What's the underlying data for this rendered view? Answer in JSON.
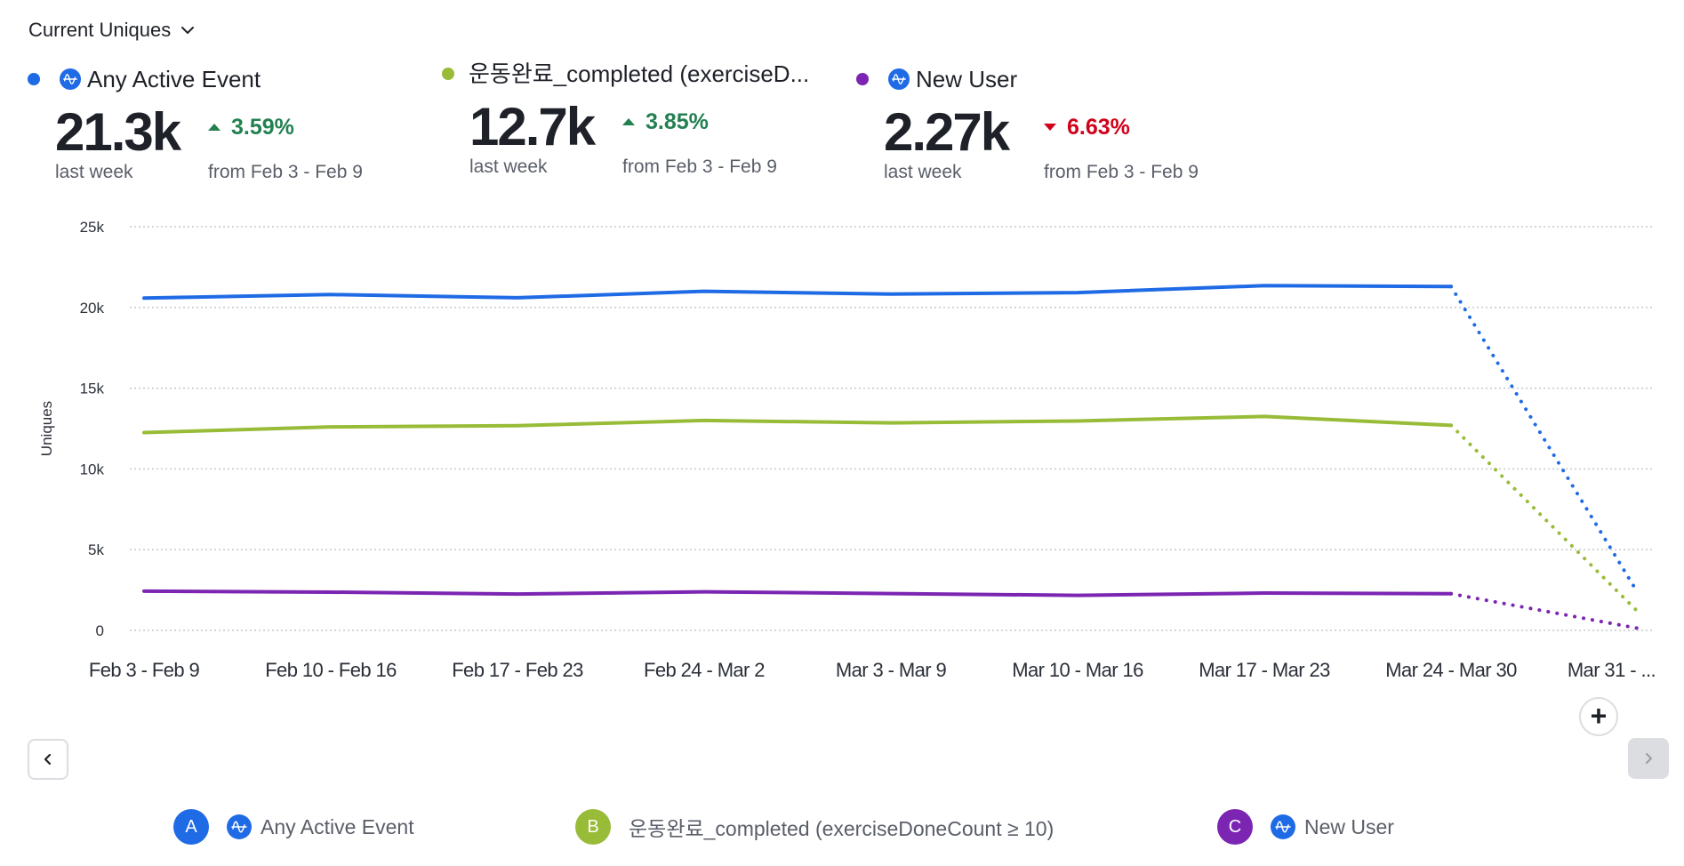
{
  "header": {
    "metric_selector": "Current Uniques",
    "chevron_icon": "chevron-down-icon"
  },
  "summaries": [
    {
      "label": "Any Active Event",
      "color": "#1f6ae5",
      "has_icon": true,
      "icon": "amplitude-icon",
      "value": "21.3k",
      "value_caption": "last week",
      "change": "3.59%",
      "direction": "up",
      "change_color": "#238051",
      "change_caption": "from Feb 3 - Feb 9"
    },
    {
      "label": "운동완료_completed (exerciseD...",
      "color": "#98bc38",
      "has_icon": false,
      "value": "12.7k",
      "value_caption": "last week",
      "change": "3.85%",
      "direction": "up",
      "change_color": "#238051",
      "change_caption": "from Feb 3 - Feb 9"
    },
    {
      "label": "New User",
      "color": "#7b25b2",
      "has_icon": true,
      "icon": "amplitude-icon",
      "value": "2.27k",
      "value_caption": "last week",
      "change": "6.63%",
      "direction": "down",
      "change_color": "#d0021b",
      "change_caption": "from Feb 3 - Feb 9"
    }
  ],
  "chart_data": {
    "type": "line",
    "title": "",
    "xlabel": "",
    "ylabel": "Uniques",
    "ylim": [
      0,
      25000
    ],
    "yticks": [
      0,
      5000,
      10000,
      15000,
      20000,
      25000
    ],
    "ytick_labels": [
      "0",
      "5k",
      "10k",
      "15k",
      "20k",
      "25k"
    ],
    "grid": true,
    "categories": [
      "Feb 3 - Feb 9",
      "Feb 10 - Feb 16",
      "Feb 17 - Feb 23",
      "Feb 24 - Mar 2",
      "Mar 3 - Mar 9",
      "Mar 10 - Mar 16",
      "Mar 17 - Mar 23",
      "Mar 24 - Mar 30",
      "Mar 31 - ..."
    ],
    "incomplete_from_index": 7,
    "series": [
      {
        "name": "Any Active Event",
        "color": "#1f6ae5",
        "values": [
          20580,
          20800,
          20600,
          21000,
          20830,
          20920,
          21350,
          21300,
          2330
        ]
      },
      {
        "name": "운동완료_completed (exerciseDoneCount ≥ 10)",
        "color": "#98bc38",
        "values": [
          12250,
          12600,
          12680,
          13000,
          12850,
          12970,
          13250,
          12700,
          1160
        ]
      },
      {
        "name": "New User",
        "color": "#7b25b2",
        "values": [
          2430,
          2370,
          2250,
          2390,
          2280,
          2170,
          2310,
          2270,
          130
        ]
      }
    ]
  },
  "controls": {
    "add_label": "+",
    "prev_icon": "chevron-left-icon",
    "next_icon": "chevron-right-icon"
  },
  "legend": [
    {
      "letter": "A",
      "label": "Any Active Event",
      "color": "#1f6ae5",
      "has_icon": true
    },
    {
      "letter": "B",
      "label": "운동완료_completed (exerciseDoneCount ≥ 10)",
      "color": "#98bc38",
      "has_icon": false
    },
    {
      "letter": "C",
      "label": "New User",
      "color": "#7b25b2",
      "has_icon": true
    }
  ]
}
